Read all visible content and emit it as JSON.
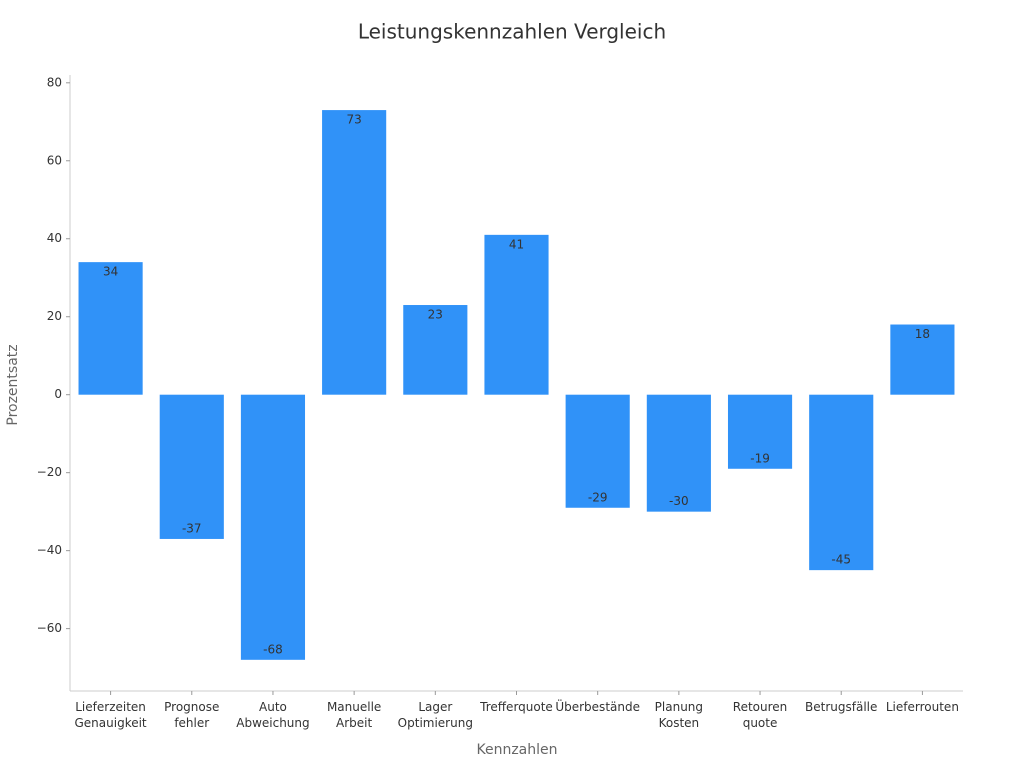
{
  "chart_data": {
    "type": "bar",
    "title": "Leistungskennzahlen Vergleich",
    "x_label": "Kennzahlen",
    "y_label": "Prozentsatz",
    "categories": [
      "Lieferzeiten\nGenauigkeit",
      "Prognose\nfehler",
      "Auto\nAbweichung",
      "Manuelle\nArbeit",
      "Lager\nOptimierung",
      "Trefferquote",
      "Überbestände",
      "Planung\nKosten",
      "Retouren\nquote",
      "Betrugsfälle",
      "Lieferrouten"
    ],
    "values": [
      34,
      -37,
      -68,
      73,
      23,
      41,
      -29,
      -30,
      -19,
      -45,
      18
    ],
    "color": "#3092f8",
    "ylim": [
      -76,
      82
    ],
    "yticks": [
      {
        "value": -60,
        "label": "−60"
      },
      {
        "value": -40,
        "label": "−40"
      },
      {
        "value": -20,
        "label": "−20"
      },
      0,
      20,
      40,
      60,
      80
    ],
    "grid": false
  }
}
